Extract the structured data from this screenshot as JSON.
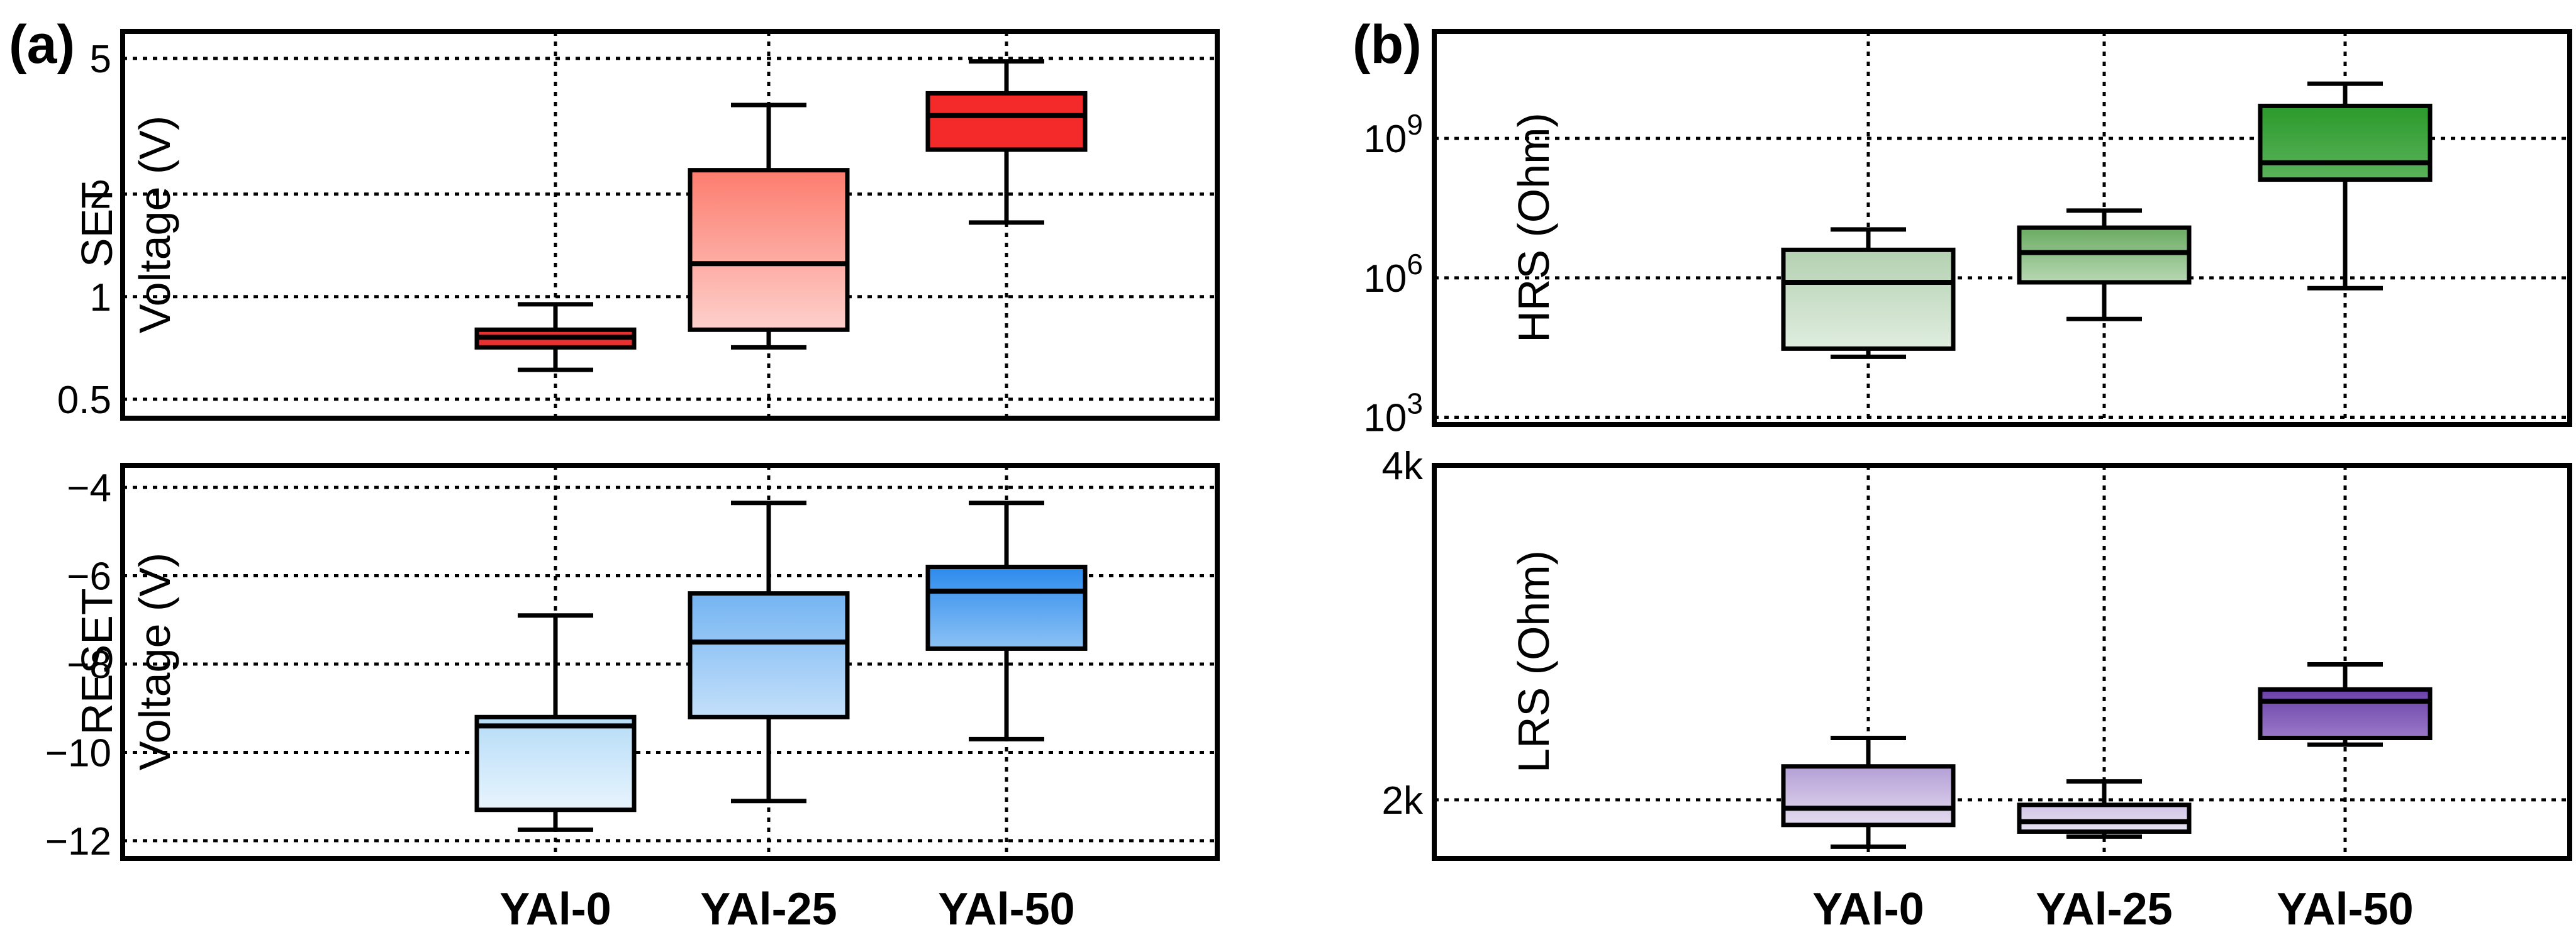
{
  "panels": {
    "a": "(a)",
    "b": "(b)"
  },
  "categories": [
    "YAl-0",
    "YAl-25",
    "YAl-50"
  ],
  "chart_data": [
    {
      "id": "set",
      "type": "box",
      "panel": "(a)",
      "ylabel": [
        "SET",
        "Voltage (V)"
      ],
      "yscale": "log",
      "ylim": [
        0.44,
        6.0
      ],
      "yticks": [
        0.5,
        1,
        2,
        5
      ],
      "yticklabels": [
        "0.5",
        "1",
        "2",
        "5"
      ],
      "categories": [
        "YAl-0",
        "YAl-25",
        "YAl-50"
      ],
      "boxes": [
        {
          "min": 0.61,
          "q1": 0.71,
          "median": 0.76,
          "q3": 0.8,
          "max": 0.95,
          "colors": [
            "#e83030",
            "#e83030"
          ],
          "median_color": "#000000"
        },
        {
          "min": 0.71,
          "q1": 0.8,
          "median": 1.25,
          "q3": 2.35,
          "max": 3.65,
          "colors": [
            "#fd7c6e",
            "#fdd0cc"
          ],
          "median_color": "#000000"
        },
        {
          "min": 1.65,
          "q1": 2.7,
          "median": 3.4,
          "q3": 3.95,
          "max": 4.9,
          "colors": [
            "#f42a2a",
            "#f42a2a"
          ],
          "median_color": "#000000"
        }
      ]
    },
    {
      "id": "reset",
      "type": "box",
      "panel": "(a)",
      "ylabel": [
        "RESET",
        "Voltage (V)"
      ],
      "yscale": "linear",
      "ylim": [
        -12.4,
        -3.5
      ],
      "yticks": [
        -12,
        -10,
        -8,
        -6,
        -4
      ],
      "yticklabels": [
        "−12",
        "−10",
        "−8",
        "−6",
        "−4"
      ],
      "categories": [
        "YAl-0",
        "YAl-25",
        "YAl-50"
      ],
      "boxes": [
        {
          "min": -11.75,
          "q1": -11.3,
          "median": -9.4,
          "q3": -9.2,
          "max": -6.9,
          "colors": [
            "#b5dcf7",
            "#e8f4fd"
          ],
          "median_color": "#000000"
        },
        {
          "min": -11.1,
          "q1": -9.2,
          "median": -7.5,
          "q3": -6.4,
          "max": -4.35,
          "colors": [
            "#74b4f2",
            "#c4e0fa"
          ],
          "median_color": "#000000"
        },
        {
          "min": -9.7,
          "q1": -7.65,
          "median": -6.35,
          "q3": -5.8,
          "max": -4.35,
          "colors": [
            "#2c8aed",
            "#8cc2f5"
          ],
          "median_color": "#000000"
        }
      ]
    },
    {
      "id": "hrs",
      "type": "box",
      "panel": "(b)",
      "ylabel": [
        "HRS (Ohm)"
      ],
      "yscale": "log",
      "ylim": [
        700,
        200000000000.0
      ],
      "yticks": [
        1000,
        1000000,
        1000000000
      ],
      "yticklabels": [
        "10",
        "10",
        "10"
      ],
      "ytick_exponents": [
        "3",
        "6",
        "9"
      ],
      "categories": [
        "YAl-0",
        "YAl-25",
        "YAl-50"
      ],
      "boxes": [
        {
          "min": 20000,
          "q1": 30000,
          "median": 800000,
          "q3": 4000000,
          "max": 11000000,
          "colors": [
            "#b3d1b0",
            "#e0ede0"
          ],
          "median_color": "#000000"
        },
        {
          "min": 130000,
          "q1": 800000,
          "median": 3500000,
          "q3": 12000000,
          "max": 28000000,
          "colors": [
            "#6aab62",
            "#b8d8b4"
          ],
          "median_color": "#000000"
        },
        {
          "min": 600000,
          "q1": 130000000,
          "median": 300000000,
          "q3": 5000000000,
          "max": 15000000000,
          "colors": [
            "#2b9a2b",
            "#5bb35b"
          ],
          "median_color": "#000000"
        }
      ]
    },
    {
      "id": "lrs",
      "type": "box",
      "panel": "(b)",
      "ylabel": [
        "LRS (Ohm)"
      ],
      "yscale": "linear",
      "ylim": [
        1650,
        4000
      ],
      "yticks": [
        2000,
        4000
      ],
      "yticklabels": [
        "2k",
        "4k"
      ],
      "categories": [
        "YAl-0",
        "YAl-25",
        "YAl-50"
      ],
      "boxes": [
        {
          "min": 1720,
          "q1": 1850,
          "median": 1950,
          "q3": 2200,
          "max": 2370,
          "colors": [
            "#b49fd6",
            "#e4dcf0"
          ],
          "median_color": "#000000"
        },
        {
          "min": 1780,
          "q1": 1810,
          "median": 1870,
          "q3": 1970,
          "max": 2110,
          "colors": [
            "#d0c4e6",
            "#e9e3f3"
          ],
          "median_color": "#000000"
        },
        {
          "min": 2330,
          "q1": 2370,
          "median": 2590,
          "q3": 2660,
          "max": 2810,
          "colors": [
            "#6a40a8",
            "#9a7ac8"
          ],
          "median_color": "#000000"
        }
      ]
    }
  ]
}
